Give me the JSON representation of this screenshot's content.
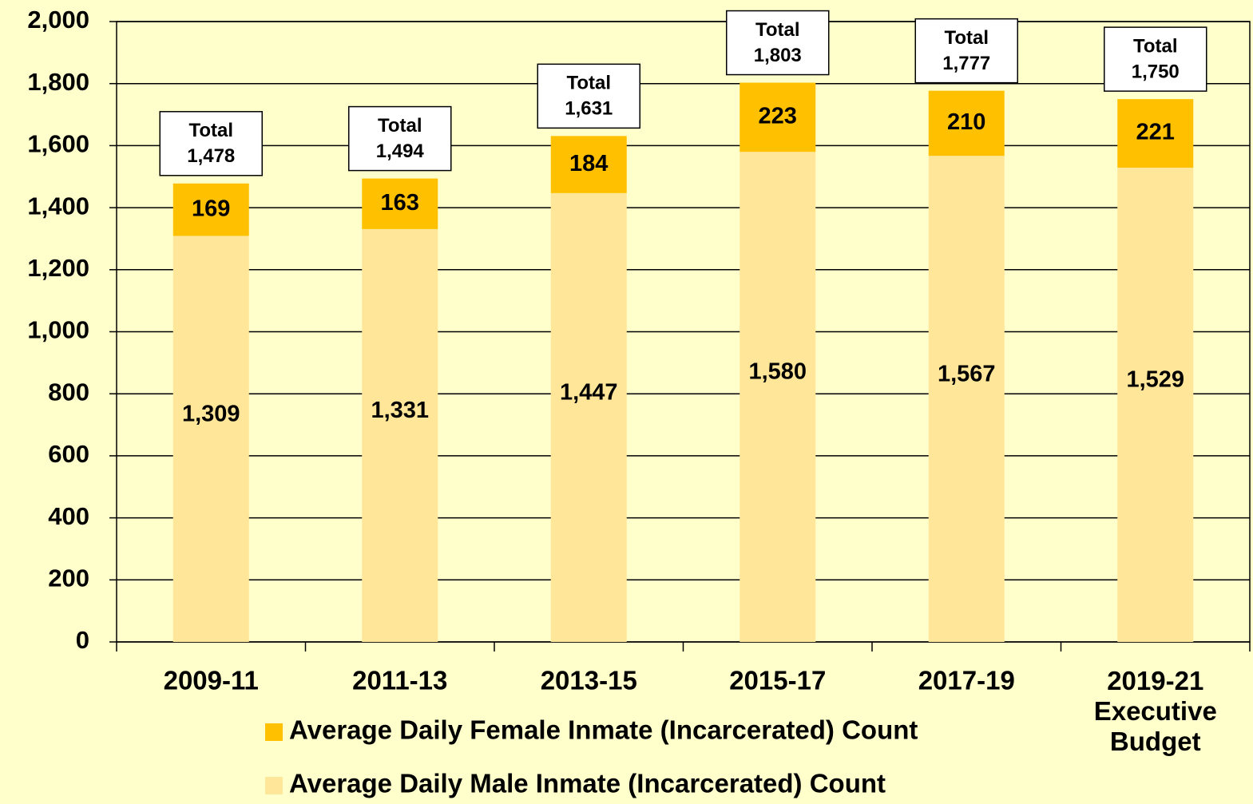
{
  "chart_data": {
    "type": "stacked_bar",
    "categories": [
      "2009-11",
      "2011-13",
      "2013-15",
      "2015-17",
      "2017-19",
      "2019-21 Executive Budget"
    ],
    "series": [
      {
        "name": "Average Daily Male Inmate (Incarcerated) Count",
        "color": "#ffe699",
        "values": [
          1309,
          1331,
          1447,
          1580,
          1567,
          1529
        ],
        "value_labels": [
          "1,309",
          "1,331",
          "1,447",
          "1,580",
          "1,567",
          "1,529"
        ]
      },
      {
        "name": "Average Daily Female Inmate (Incarcerated) Count",
        "color": "#ffc000",
        "values": [
          169,
          163,
          184,
          223,
          210,
          221
        ]
      }
    ],
    "total_label": "Total",
    "totals": [
      1478,
      1494,
      1631,
      1803,
      1777,
      1750
    ],
    "totals_labels": [
      "1,478",
      "1,494",
      "1,631",
      "1,803",
      "1,777",
      "1,750"
    ],
    "ylim": [
      0,
      2000
    ],
    "yticks": [
      0,
      200,
      400,
      600,
      800,
      {
        "value": 1000,
        "label": "1,000"
      },
      {
        "value": 1200,
        "label": "1,200"
      },
      {
        "value": 1400,
        "label": "1,400"
      },
      {
        "value": 1600,
        "label": "1,600"
      },
      {
        "value": 1800,
        "label": "1,800"
      },
      {
        "value": 2000,
        "label": "2,000"
      }
    ],
    "grid": true
  }
}
